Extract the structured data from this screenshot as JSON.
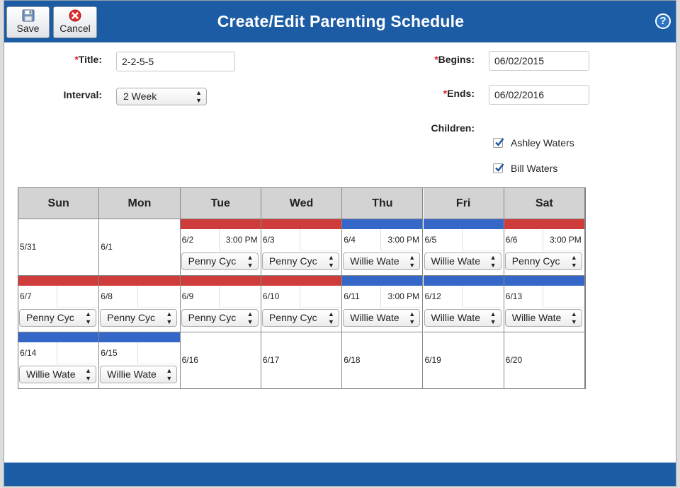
{
  "header": {
    "title": "Create/Edit Parenting Schedule",
    "save_label": "Save",
    "cancel_label": "Cancel",
    "help_label": "?"
  },
  "form": {
    "title_label": "Title:",
    "title_value": "2-2-5-5",
    "interval_label": "Interval:",
    "interval_value": "2 Week",
    "begins_label": "Begins:",
    "begins_value": "06/02/2015",
    "ends_label": "Ends:",
    "ends_value": "06/02/2016",
    "children_label": "Children:",
    "required_mark": "*",
    "children": [
      {
        "name": "Ashley Waters",
        "checked": true
      },
      {
        "name": "Bill Waters",
        "checked": true
      }
    ]
  },
  "calendar": {
    "days": [
      "Sun",
      "Mon",
      "Tue",
      "Wed",
      "Thu",
      "Fri",
      "Sat"
    ],
    "colors": {
      "red": "#cf3c3c",
      "blue": "#3567c8"
    },
    "weeks": [
      [
        {
          "date": "5/31",
          "bar": "",
          "time": "",
          "parent": ""
        },
        {
          "date": "6/1",
          "bar": "",
          "time": "",
          "parent": ""
        },
        {
          "date": "6/2",
          "bar": "red",
          "time": "3:00 PM",
          "parent": "Penny Cyc"
        },
        {
          "date": "6/3",
          "bar": "red",
          "time": "",
          "parent": "Penny Cyc"
        },
        {
          "date": "6/4",
          "bar": "blue",
          "time": "3:00 PM",
          "parent": "Willie Wate"
        },
        {
          "date": "6/5",
          "bar": "blue",
          "time": "",
          "parent": "Willie Wate"
        },
        {
          "date": "6/6",
          "bar": "red",
          "time": "3:00 PM",
          "parent": "Penny Cyc"
        }
      ],
      [
        {
          "date": "6/7",
          "bar": "red",
          "time": "",
          "parent": "Penny Cyc"
        },
        {
          "date": "6/8",
          "bar": "red",
          "time": "",
          "parent": "Penny Cyc"
        },
        {
          "date": "6/9",
          "bar": "red",
          "time": "",
          "parent": "Penny Cyc"
        },
        {
          "date": "6/10",
          "bar": "red",
          "time": "",
          "parent": "Penny Cyc"
        },
        {
          "date": "6/11",
          "bar": "blue",
          "time": "3:00 PM",
          "parent": "Willie Wate"
        },
        {
          "date": "6/12",
          "bar": "blue",
          "time": "",
          "parent": "Willie Wate"
        },
        {
          "date": "6/13",
          "bar": "blue",
          "time": "",
          "parent": "Willie Wate"
        }
      ],
      [
        {
          "date": "6/14",
          "bar": "blue",
          "time": "",
          "parent": "Willie Wate"
        },
        {
          "date": "6/15",
          "bar": "blue",
          "time": "",
          "parent": "Willie Wate"
        },
        {
          "date": "6/16",
          "bar": "",
          "time": "",
          "parent": ""
        },
        {
          "date": "6/17",
          "bar": "",
          "time": "",
          "parent": ""
        },
        {
          "date": "6/18",
          "bar": "",
          "time": "",
          "parent": ""
        },
        {
          "date": "6/19",
          "bar": "",
          "time": "",
          "parent": ""
        },
        {
          "date": "6/20",
          "bar": "",
          "time": "",
          "parent": ""
        }
      ]
    ]
  }
}
